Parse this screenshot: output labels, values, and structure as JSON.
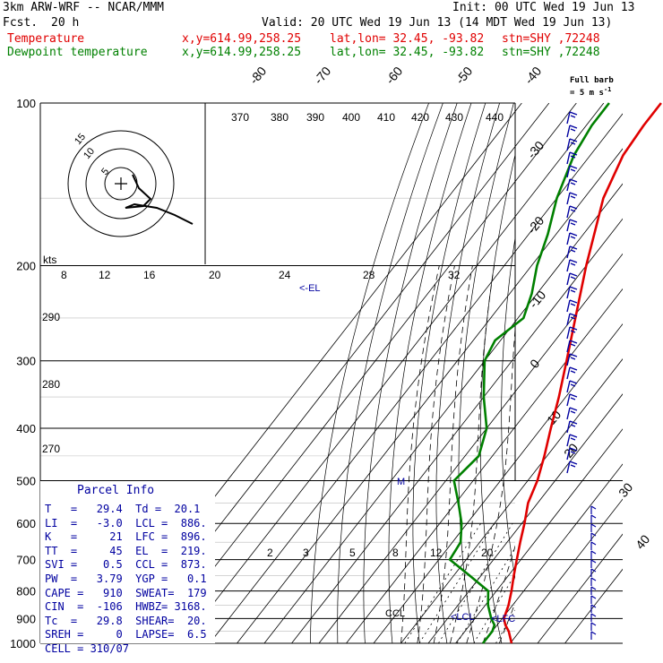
{
  "header": {
    "model": "3km ARW-WRF -- NCAR/MMM",
    "init": "Init: 00 UTC Wed 19 Jun 13",
    "fcst_label": "Fcst.",
    "fcst_value": "20 h",
    "valid": "Valid: 20 UTC Wed 19 Jun 13 (14 MDT Wed 19 Jun 13)",
    "temp_label": "Temperature",
    "dew_label": "Dewpoint temperature",
    "xy": "x,y=614.99,258.25",
    "latlon": "lat,lon= 32.45, -93.82",
    "stn": "stn=SHY ,72248",
    "full_barb_line1": "Full barb",
    "full_barb_line2": "= 5 m s",
    "full_barb_sup": "-1"
  },
  "colors": {
    "temperature": "#e00000",
    "dewpoint": "#008000",
    "annotation": "#0000a0",
    "isotherm": "#000000"
  },
  "parcel_info": {
    "title": "Parcel Info",
    "rows": [
      "T   =   29.4  Td =  20.1",
      "LI  =   -3.0  LCL =  886.",
      "K   =     21  LFC =  896.",
      "TT  =     45  EL  =  219.",
      "SVI =    0.5  CCL =  873.",
      "PW  =   3.79  YGP =   0.1",
      "CAPE =   910  SWEAT=  179",
      "CIN  =  -106  HWBZ= 3168.",
      "Tc  =   29.8  SHEAR=  20.",
      "SREH =     0  LAPSE=  6.5",
      "CELL = 310/07"
    ]
  },
  "annotations": {
    "el": "<-EL",
    "ccl": "CCL",
    "lcl": "<LCL",
    "lfc": "<LFC",
    "m": "M",
    "kts": "kts"
  },
  "chart_data": {
    "type": "line",
    "subtype": "skew-T log-P",
    "ylabel": "",
    "pressure_levels": [
      100,
      200,
      300,
      400,
      500,
      600,
      700,
      800,
      900,
      1000
    ],
    "isotherm_labels": [
      -80,
      -70,
      -60,
      -50,
      -40,
      -30,
      -20,
      -10,
      0,
      10,
      20,
      30,
      40
    ],
    "theta_labels": [
      370,
      380,
      390,
      400,
      410,
      420,
      430,
      440
    ],
    "theta_e_side_labels": [
      290,
      280,
      270
    ],
    "mixing_ratio_top_labels": [
      8,
      12,
      16,
      20,
      24,
      28,
      32
    ],
    "mixing_ratio_bottom_labels": [
      2,
      3,
      5,
      8,
      12,
      20
    ],
    "series": [
      {
        "name": "Temperature",
        "points": [
          {
            "p": 1000,
            "t": 30.5
          },
          {
            "p": 950,
            "t": 26
          },
          {
            "p": 925,
            "t": 23
          },
          {
            "p": 900,
            "t": 20.6
          },
          {
            "p": 850,
            "t": 18.5
          },
          {
            "p": 800,
            "t": 15.5
          },
          {
            "p": 750,
            "t": 12
          },
          {
            "p": 700,
            "t": 8.5
          },
          {
            "p": 650,
            "t": 4.8
          },
          {
            "p": 600,
            "t": 1
          },
          {
            "p": 550,
            "t": -3.5
          },
          {
            "p": 500,
            "t": -6.5
          },
          {
            "p": 450,
            "t": -11
          },
          {
            "p": 400,
            "t": -16.5
          },
          {
            "p": 350,
            "t": -22.5
          },
          {
            "p": 300,
            "t": -30
          },
          {
            "p": 250,
            "t": -39
          },
          {
            "p": 200,
            "t": -50
          },
          {
            "p": 175,
            "t": -56
          },
          {
            "p": 150,
            "t": -63
          },
          {
            "p": 125,
            "t": -68
          },
          {
            "p": 110,
            "t": -69
          },
          {
            "p": 100,
            "t": -69
          }
        ]
      },
      {
        "name": "Dewpoint temperature",
        "points": [
          {
            "p": 1000,
            "t": 20
          },
          {
            "p": 950,
            "t": 20
          },
          {
            "p": 925,
            "t": 19
          },
          {
            "p": 900,
            "t": 16
          },
          {
            "p": 850,
            "t": 11
          },
          {
            "p": 800,
            "t": 7
          },
          {
            "p": 750,
            "t": -4
          },
          {
            "p": 700,
            "t": -16
          },
          {
            "p": 650,
            "t": -17
          },
          {
            "p": 600,
            "t": -22
          },
          {
            "p": 550,
            "t": -29
          },
          {
            "p": 500,
            "t": -37
          },
          {
            "p": 450,
            "t": -35
          },
          {
            "p": 400,
            "t": -40
          },
          {
            "p": 350,
            "t": -50
          },
          {
            "p": 300,
            "t": -60
          },
          {
            "p": 275,
            "t": -62
          },
          {
            "p": 250,
            "t": -58
          },
          {
            "p": 225,
            "t": -62
          },
          {
            "p": 200,
            "t": -68
          },
          {
            "p": 175,
            "t": -73
          },
          {
            "p": 150,
            "t": -80
          },
          {
            "p": 125,
            "t": -86
          },
          {
            "p": 110,
            "t": -88
          },
          {
            "p": 100,
            "t": -88
          }
        ]
      }
    ],
    "hodograph_rings": [
      5,
      10,
      15
    ]
  }
}
